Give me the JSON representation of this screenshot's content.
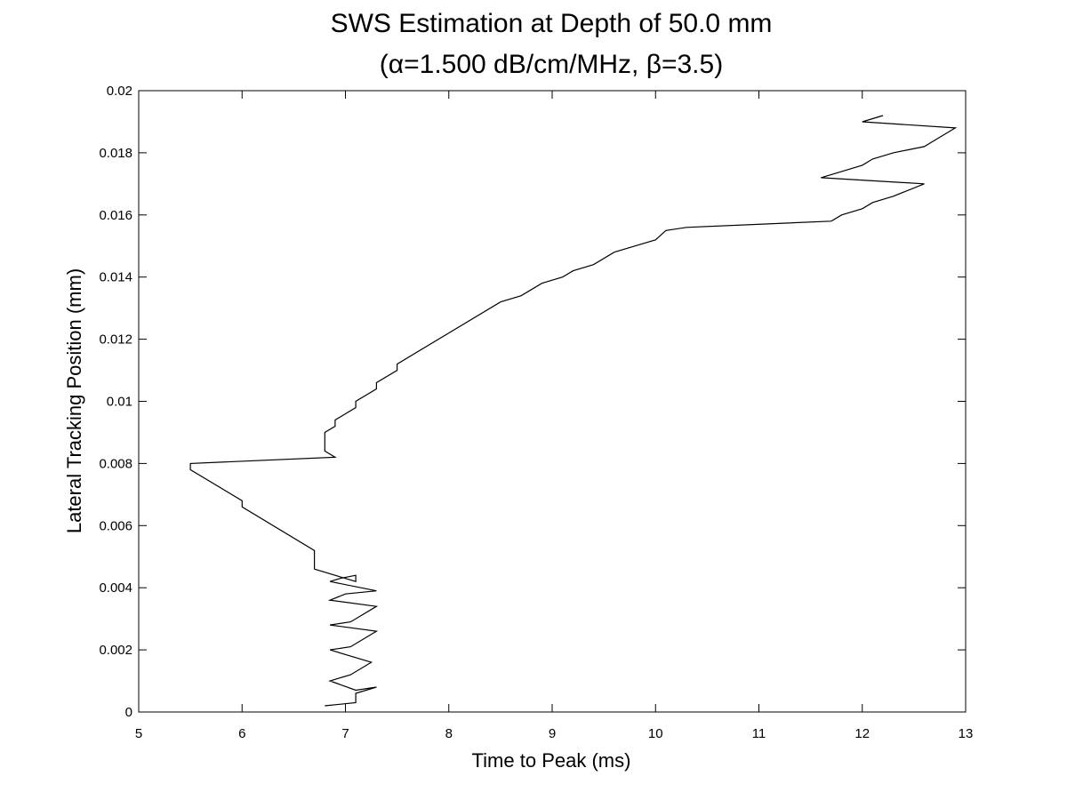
{
  "chart_data": {
    "type": "line",
    "title": "SWS Estimation at Depth of 50.0 mm",
    "subtitle": "(α=1.500 dB/cm/MHz, β=3.5)",
    "xlabel": "Time to Peak (ms)",
    "ylabel": "Lateral Tracking Position (mm)",
    "xlim": [
      5,
      13
    ],
    "ylim": [
      0,
      0.02
    ],
    "xticks": [
      "5",
      "6",
      "7",
      "8",
      "9",
      "10",
      "11",
      "12",
      "13"
    ],
    "yticks": [
      "0",
      "0.002",
      "0.004",
      "0.006",
      "0.008",
      "0.01",
      "0.012",
      "0.014",
      "0.016",
      "0.018",
      "0.02"
    ],
    "grid": false,
    "series": [
      {
        "x": [
          6.8,
          7.1,
          7.1,
          7.3,
          7.1,
          6.85,
          7.05,
          7.25,
          6.85,
          7.05,
          7.3,
          6.85,
          7.05,
          7.3,
          6.85,
          7.0,
          7.3,
          6.85,
          6.95,
          7.1,
          7.1,
          6.7,
          6.7,
          6.0,
          6.0,
          5.5,
          5.5,
          6.9,
          6.8,
          6.8,
          6.9,
          6.9,
          7.1,
          7.1,
          7.3,
          7.3,
          7.5,
          7.5,
          8.0,
          8.5,
          8.7,
          8.9,
          9.1,
          9.2,
          9.4,
          9.6,
          9.9,
          10.0,
          10.1,
          10.3,
          11.7,
          11.8,
          12.0,
          12.1,
          12.3,
          12.6,
          11.6,
          12.0,
          12.1,
          12.3,
          12.6,
          12.7,
          12.9,
          12.0,
          12.2
        ],
        "y": [
          0.0002,
          0.0003,
          0.0006,
          0.0008,
          0.0007,
          0.001,
          0.0012,
          0.0016,
          0.002,
          0.0021,
          0.0026,
          0.0028,
          0.0029,
          0.0034,
          0.0036,
          0.0038,
          0.0039,
          0.0042,
          0.0043,
          0.0044,
          0.0042,
          0.0046,
          0.0052,
          0.0066,
          0.0068,
          0.0078,
          0.008,
          0.0082,
          0.0084,
          0.009,
          0.0092,
          0.0094,
          0.0098,
          0.01,
          0.0104,
          0.0106,
          0.011,
          0.0112,
          0.0122,
          0.0132,
          0.0134,
          0.0138,
          0.014,
          0.0142,
          0.0144,
          0.0148,
          0.0151,
          0.0152,
          0.0155,
          0.0156,
          0.0158,
          0.016,
          0.0162,
          0.0164,
          0.0166,
          0.017,
          0.0172,
          0.0176,
          0.0178,
          0.018,
          0.0182,
          0.0184,
          0.0188,
          0.019,
          0.0192
        ]
      }
    ]
  }
}
